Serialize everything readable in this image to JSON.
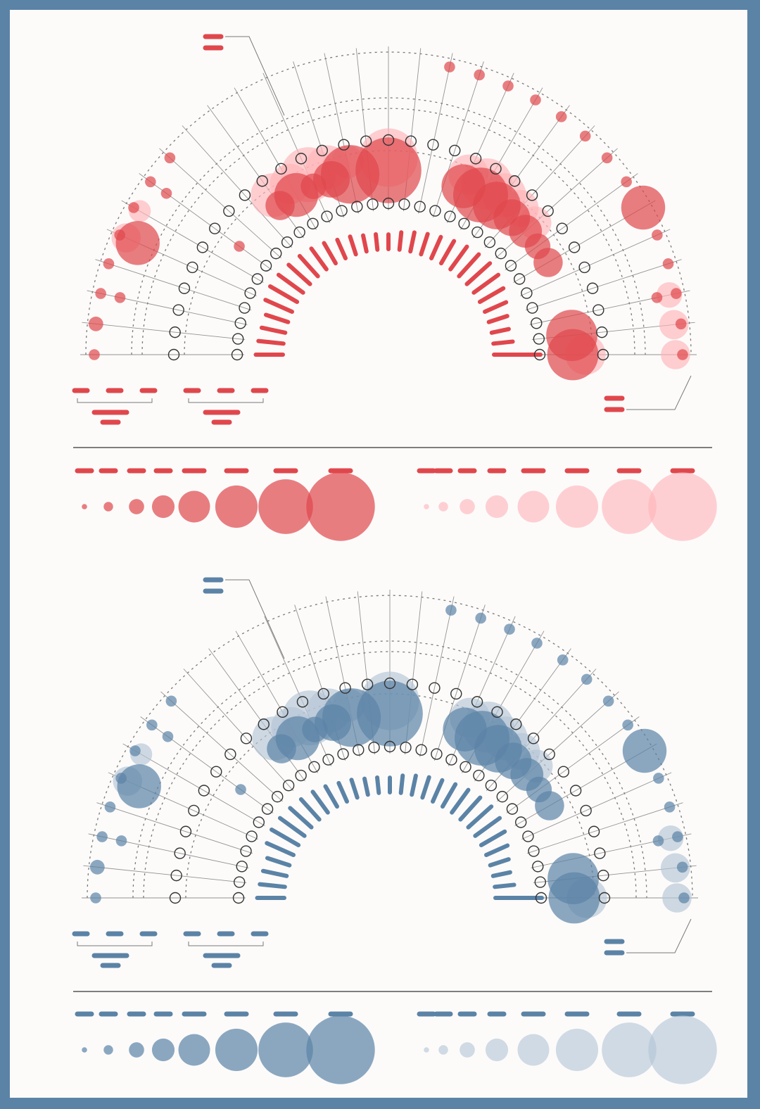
{
  "colors": {
    "frame": "#5b83a6",
    "background": "#fcfbfa",
    "red_dark": "#e0474c",
    "red_light": "#ffb3b8",
    "blue_dark": "#5b83a6",
    "blue_light": "#b3c4d6",
    "guide": "#7a7a7a",
    "node": "#333333"
  },
  "chart_data": [
    {
      "type": "radial-bubble",
      "theme": "red",
      "spokes": 31,
      "arc_start_deg": 180,
      "arc_end_deg": 0,
      "bar_values": [
        0.7,
        0.65,
        0.62,
        0.6,
        0.75,
        0.8,
        0.78,
        0.74,
        0.7,
        0.66,
        0.6,
        0.52,
        0.48,
        0.42,
        0.4,
        0.38,
        0.45,
        0.5,
        0.55,
        0.6,
        0.66,
        0.72,
        0.76,
        0.8,
        0.78,
        0.7,
        0.6,
        0.5,
        0.45,
        0.5,
        1.2
      ],
      "rings": [
        {
          "role": "inner",
          "dark": [
            0,
            0,
            0,
            0,
            0,
            0,
            3,
            0,
            0,
            8,
            12,
            7,
            10,
            16,
            0,
            18,
            0,
            0,
            0,
            12,
            15,
            13,
            10,
            9,
            7,
            8,
            0,
            0,
            0,
            14,
            14
          ],
          "light": [
            0,
            0,
            0,
            0,
            0,
            0,
            0,
            0,
            0,
            12,
            11,
            15,
            12,
            9,
            0,
            16,
            0,
            0,
            0,
            11,
            14,
            12,
            10,
            9,
            0,
            0,
            0,
            0,
            0,
            0,
            11
          ]
        },
        {
          "role": "middle",
          "dark": [
            0,
            0,
            3,
            0,
            12,
            0,
            3,
            0,
            0,
            0,
            0,
            0,
            0,
            0,
            0,
            0,
            0,
            0,
            0,
            0,
            0,
            0,
            0,
            0,
            0,
            0,
            0,
            0,
            3,
            0,
            0
          ],
          "light": [
            0,
            0,
            0,
            0,
            8,
            6,
            0,
            0,
            0,
            0,
            0,
            0,
            0,
            0,
            0,
            0,
            0,
            0,
            0,
            0,
            0,
            0,
            0,
            0,
            0,
            0,
            0,
            0,
            7,
            8,
            8
          ]
        },
        {
          "role": "outer",
          "dark": [
            3,
            4,
            3,
            3,
            3,
            3,
            3,
            3,
            0,
            0,
            0,
            0,
            0,
            0,
            0,
            0,
            0,
            3,
            3,
            3,
            3,
            3,
            3,
            3,
            3,
            12,
            3,
            3,
            3,
            3,
            3
          ],
          "light": [
            0,
            0,
            0,
            0,
            0,
            0,
            0,
            0,
            0,
            0,
            0,
            0,
            0,
            0,
            0,
            0,
            0,
            0,
            0,
            0,
            0,
            0,
            0,
            0,
            0,
            0,
            0,
            0,
            0,
            0,
            0
          ]
        }
      ],
      "callouts": [
        {
          "position": "top-left",
          "lines": 2
        },
        {
          "position": "bottom-right",
          "lines": 2
        }
      ],
      "legend_sizes": [
        1,
        2,
        3,
        4,
        5,
        6,
        7,
        8
      ]
    },
    {
      "type": "radial-bubble",
      "theme": "blue",
      "spokes": 31,
      "arc_start_deg": 180,
      "arc_end_deg": 0,
      "bar_values": [
        0.7,
        0.65,
        0.62,
        0.6,
        0.75,
        0.8,
        0.78,
        0.74,
        0.7,
        0.66,
        0.6,
        0.52,
        0.48,
        0.42,
        0.4,
        0.38,
        0.45,
        0.5,
        0.55,
        0.6,
        0.66,
        0.72,
        0.76,
        0.8,
        0.78,
        0.7,
        0.6,
        0.5,
        0.45,
        0.5,
        1.2
      ],
      "rings": [
        {
          "role": "inner",
          "dark": [
            0,
            0,
            0,
            0,
            0,
            0,
            3,
            0,
            0,
            8,
            12,
            7,
            10,
            16,
            0,
            18,
            0,
            0,
            0,
            12,
            15,
            13,
            10,
            9,
            7,
            8,
            0,
            0,
            0,
            14,
            14
          ],
          "light": [
            0,
            0,
            0,
            0,
            0,
            0,
            0,
            0,
            0,
            12,
            11,
            15,
            12,
            9,
            0,
            16,
            0,
            0,
            0,
            11,
            14,
            12,
            10,
            9,
            0,
            0,
            0,
            0,
            0,
            0,
            11
          ]
        },
        {
          "role": "middle",
          "dark": [
            0,
            0,
            3,
            0,
            12,
            0,
            3,
            0,
            0,
            0,
            0,
            0,
            0,
            0,
            0,
            0,
            0,
            0,
            0,
            0,
            0,
            0,
            0,
            0,
            0,
            0,
            0,
            0,
            3,
            0,
            0
          ],
          "light": [
            0,
            0,
            0,
            0,
            8,
            6,
            0,
            0,
            0,
            0,
            0,
            0,
            0,
            0,
            0,
            0,
            0,
            0,
            0,
            0,
            0,
            0,
            0,
            0,
            0,
            0,
            0,
            0,
            7,
            8,
            8
          ]
        },
        {
          "role": "outer",
          "dark": [
            3,
            4,
            3,
            3,
            3,
            3,
            3,
            3,
            0,
            0,
            0,
            0,
            0,
            0,
            0,
            0,
            0,
            3,
            3,
            3,
            3,
            3,
            3,
            3,
            3,
            12,
            3,
            3,
            3,
            3,
            3
          ],
          "light": [
            0,
            0,
            0,
            0,
            0,
            0,
            0,
            0,
            0,
            0,
            0,
            0,
            0,
            0,
            0,
            0,
            0,
            0,
            0,
            0,
            0,
            0,
            0,
            0,
            0,
            0,
            0,
            0,
            0,
            0,
            0
          ]
        }
      ],
      "callouts": [
        {
          "position": "top-left",
          "lines": 2
        },
        {
          "position": "bottom-right",
          "lines": 2
        }
      ],
      "legend_sizes": [
        1,
        2,
        3,
        4,
        5,
        6,
        7,
        8
      ]
    }
  ]
}
